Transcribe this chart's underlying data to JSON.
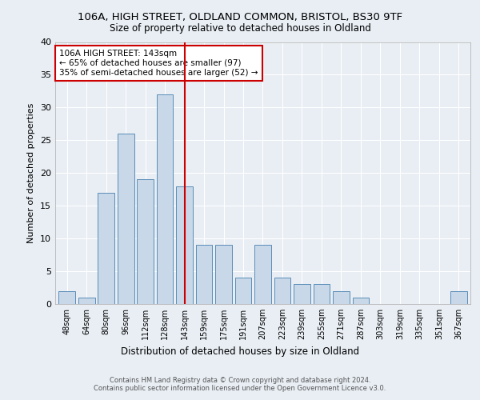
{
  "title1": "106A, HIGH STREET, OLDLAND COMMON, BRISTOL, BS30 9TF",
  "title2": "Size of property relative to detached houses in Oldland",
  "xlabel": "Distribution of detached houses by size in Oldland",
  "ylabel": "Number of detached properties",
  "categories": [
    "48sqm",
    "64sqm",
    "80sqm",
    "96sqm",
    "112sqm",
    "128sqm",
    "143sqm",
    "159sqm",
    "175sqm",
    "191sqm",
    "207sqm",
    "223sqm",
    "239sqm",
    "255sqm",
    "271sqm",
    "287sqm",
    "303sqm",
    "319sqm",
    "335sqm",
    "351sqm",
    "367sqm"
  ],
  "values": [
    2,
    1,
    17,
    26,
    19,
    32,
    18,
    9,
    9,
    4,
    9,
    4,
    3,
    3,
    2,
    1,
    0,
    0,
    0,
    0,
    2
  ],
  "bar_color": "#c8d8e8",
  "bar_edge_color": "#5b8db8",
  "highlight_index": 6,
  "highlight_line_color": "#cc0000",
  "annotation_text": "106A HIGH STREET: 143sqm\n← 65% of detached houses are smaller (97)\n35% of semi-detached houses are larger (52) →",
  "annotation_box_color": "#ffffff",
  "annotation_box_edge": "#cc0000",
  "ylim": [
    0,
    40
  ],
  "yticks": [
    0,
    5,
    10,
    15,
    20,
    25,
    30,
    35,
    40
  ],
  "footer1": "Contains HM Land Registry data © Crown copyright and database right 2024.",
  "footer2": "Contains public sector information licensed under the Open Government Licence v3.0.",
  "bg_color": "#e8eef4",
  "plot_bg_color": "#e8eef4"
}
